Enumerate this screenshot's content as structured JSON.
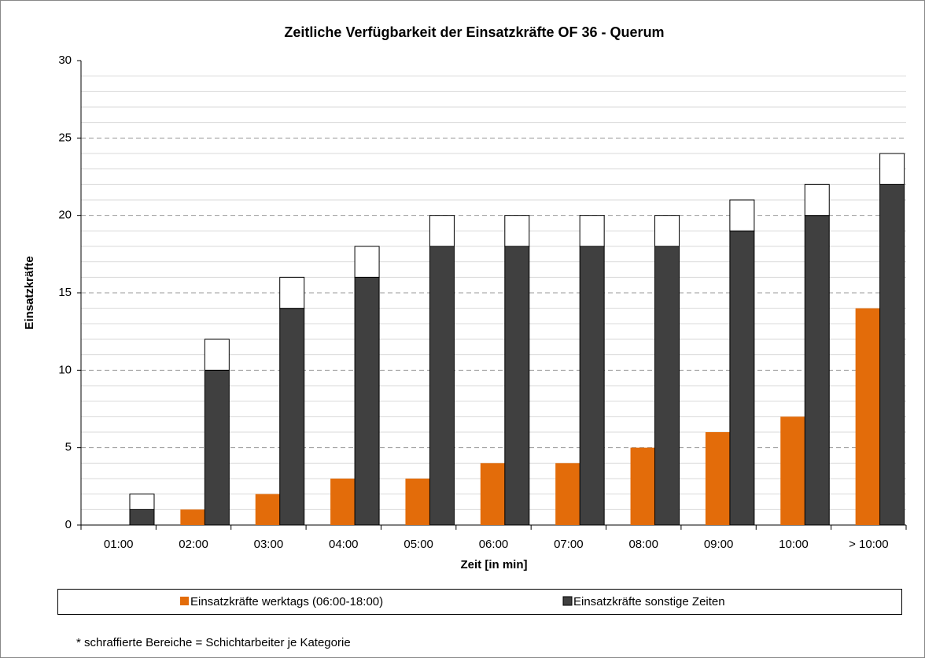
{
  "chart_data": {
    "type": "bar",
    "title": "Zeitliche Verfügbarkeit der Einsatzkräfte OF 36 - Querum",
    "x_label": "Zeit [in min]",
    "y_label": "Einsatzkräfte",
    "categories": [
      "01:00",
      "02:00",
      "03:00",
      "04:00",
      "05:00",
      "06:00",
      "07:00",
      "08:00",
      "09:00",
      "10:00",
      "> 10:00"
    ],
    "series": [
      {
        "name": "Einsatzkräfte werktags (06:00-18:00)",
        "color": "#e36c0a",
        "values": [
          0,
          1,
          2,
          3,
          3,
          4,
          4,
          5,
          6,
          7,
          14
        ]
      },
      {
        "name": "Einsatzkräfte sonstige Zeiten",
        "color": "#404040",
        "values": [
          1,
          10,
          14,
          16,
          18,
          18,
          18,
          18,
          19,
          20,
          22
        ]
      },
      {
        "color": "#ffffff",
        "values": [
          1,
          2,
          2,
          2,
          2,
          2,
          2,
          2,
          2,
          2,
          2
        ],
        "stacked": true
      }
    ],
    "ylim": [
      0,
      30
    ],
    "yticks": [
      0,
      5,
      10,
      15,
      20,
      25,
      30
    ],
    "minor_grid_step": 1,
    "grid": true,
    "legend": "bottom",
    "note": "* schraffierte Bereiche = Schichtarbeiter je Kategorie"
  }
}
